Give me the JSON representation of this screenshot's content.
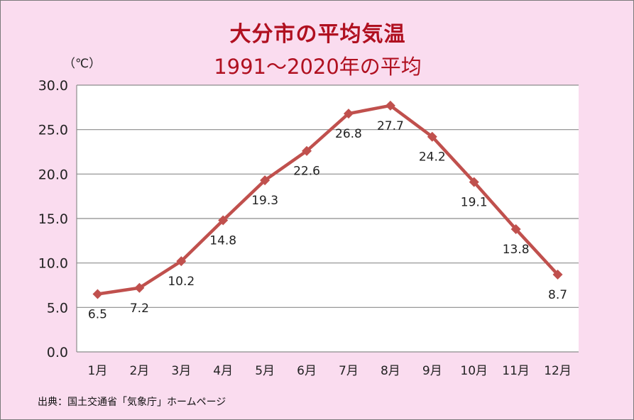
{
  "chart_data": {
    "type": "line",
    "title": "大分市の平均気温",
    "subtitle": "1991～2020年の平均",
    "ylabel": "（℃）",
    "categories": [
      "1月",
      "2月",
      "3月",
      "4月",
      "5月",
      "6月",
      "7月",
      "8月",
      "9月",
      "10月",
      "11月",
      "12月"
    ],
    "series": [
      {
        "values": [
          6.5,
          7.2,
          10.2,
          14.8,
          19.3,
          22.6,
          26.8,
          27.7,
          24.2,
          19.1,
          13.8,
          8.7
        ]
      }
    ],
    "data_labels": [
      "6.5",
      "7.2",
      "10.2",
      "14.8",
      "19.3",
      "22.6",
      "26.8",
      "27.7",
      "24.2",
      "19.1",
      "13.8",
      "8.7"
    ],
    "ylim": [
      0,
      30
    ],
    "yticks": [
      "0.0",
      "5.0",
      "10.0",
      "15.0",
      "20.0",
      "25.0",
      "30.0"
    ],
    "grid": true,
    "line_color": "#c0504d",
    "source": "出典：国土交通省「気象庁」ホームページ"
  }
}
